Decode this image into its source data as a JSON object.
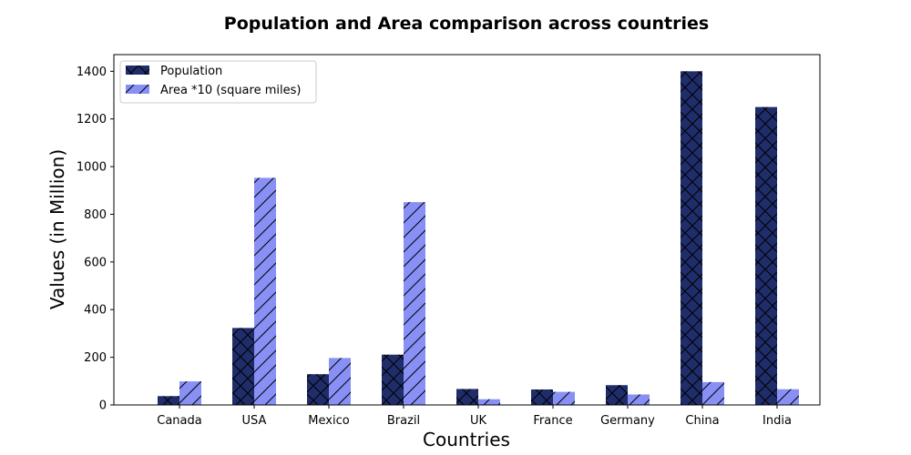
{
  "chart_data": {
    "type": "bar",
    "title": "Population and Area comparison across countries",
    "xlabel": "Countries",
    "ylabel": "Values (in Million)",
    "categories": [
      "Canada",
      "USA",
      "Mexico",
      "Brazil",
      "UK",
      "France",
      "Germany",
      "China",
      "India"
    ],
    "series": [
      {
        "name": "Population",
        "values": [
          37,
          323,
          129,
          211,
          67,
          65,
          83,
          1400,
          1250
        ],
        "color": "#1f2d6b",
        "hatch": "x"
      },
      {
        "name": "Area *10 (square miles)",
        "values": [
          99,
          953,
          197,
          851,
          24,
          55,
          44,
          96,
          66
        ],
        "color": "#8890f5",
        "hatch": "/"
      }
    ],
    "ylim": [
      0,
      1470
    ],
    "yticks": [
      0,
      200,
      400,
      600,
      800,
      1000,
      1200,
      1400
    ],
    "legend_position": "upper-left",
    "grid": false
  }
}
